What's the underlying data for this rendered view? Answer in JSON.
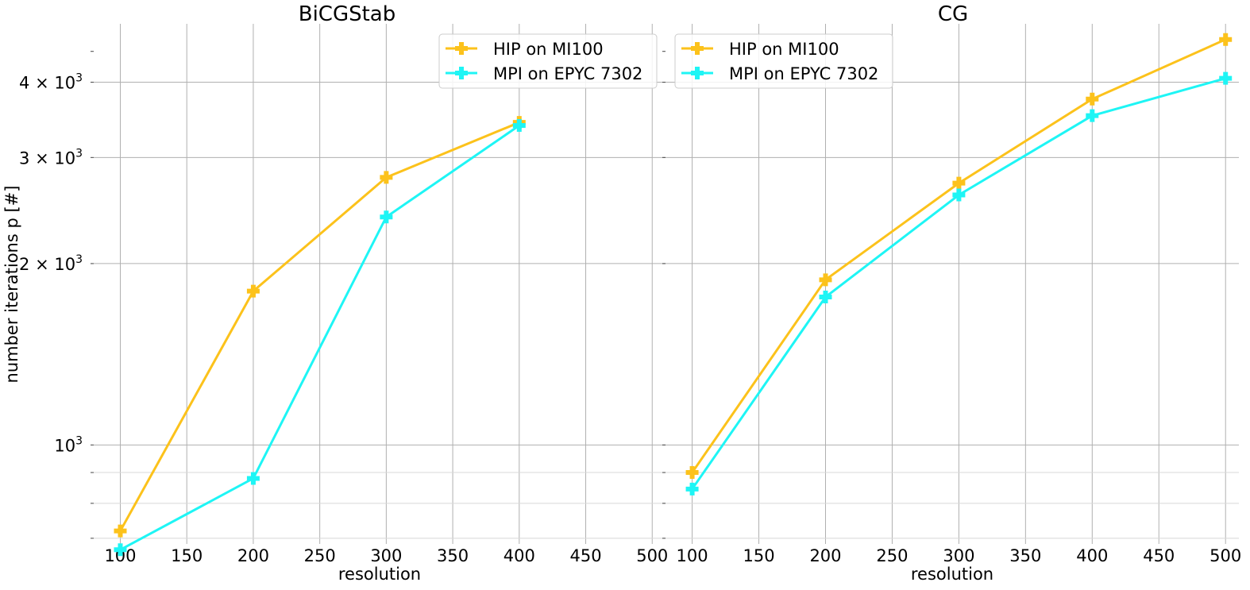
{
  "chart_data": [
    {
      "type": "line",
      "title": "BiCGStab",
      "xlabel": "resolution",
      "ylabel": "number iterations p [#]",
      "xlim": [
        80,
        510
      ],
      "ylim": [
        685,
        5000
      ],
      "yscale": "log",
      "xticks": [
        100,
        150,
        200,
        250,
        300,
        350,
        400,
        450,
        500
      ],
      "xtick_labels": [
        "100",
        "150",
        "200",
        "250",
        "300",
        "350",
        "400",
        "450",
        "500"
      ],
      "ytick_major": [
        1000,
        2000,
        3000,
        4000
      ],
      "ytick_minor": [
        700,
        800,
        900
      ],
      "grid": true,
      "legend_position": "top-right",
      "series": [
        {
          "name": "HIP on MI100",
          "color": "#fcc21b",
          "x": [
            100,
            200,
            300,
            400
          ],
          "y": [
            720,
            1800,
            2780,
            3430
          ]
        },
        {
          "name": "MPI on EPYC 7302",
          "color": "#1ef5f5",
          "x": [
            100,
            200,
            300,
            400
          ],
          "y": [
            670,
            880,
            2390,
            3390
          ]
        }
      ]
    },
    {
      "type": "line",
      "title": "CG",
      "xlabel": "resolution",
      "ylabel": "",
      "xlim": [
        80,
        510
      ],
      "ylim": [
        685,
        5000
      ],
      "yscale": "log",
      "xticks": [
        100,
        150,
        200,
        250,
        300,
        350,
        400,
        450,
        500
      ],
      "xtick_labels": [
        "100",
        "150",
        "200",
        "250",
        "300",
        "350",
        "400",
        "450",
        "500"
      ],
      "ytick_major": [
        1000,
        2000,
        3000,
        4000
      ],
      "ytick_minor": [
        700,
        800,
        900
      ],
      "grid": true,
      "legend_position": "top-left",
      "series": [
        {
          "name": "HIP on MI100",
          "color": "#fcc21b",
          "x": [
            100,
            200,
            300,
            400,
            500
          ],
          "y": [
            900,
            1880,
            2720,
            3750,
            4710
          ]
        },
        {
          "name": "MPI on EPYC 7302",
          "color": "#1ef5f5",
          "x": [
            100,
            200,
            300,
            400,
            500
          ],
          "y": [
            845,
            1760,
            2600,
            3520,
            4060
          ]
        }
      ]
    }
  ]
}
